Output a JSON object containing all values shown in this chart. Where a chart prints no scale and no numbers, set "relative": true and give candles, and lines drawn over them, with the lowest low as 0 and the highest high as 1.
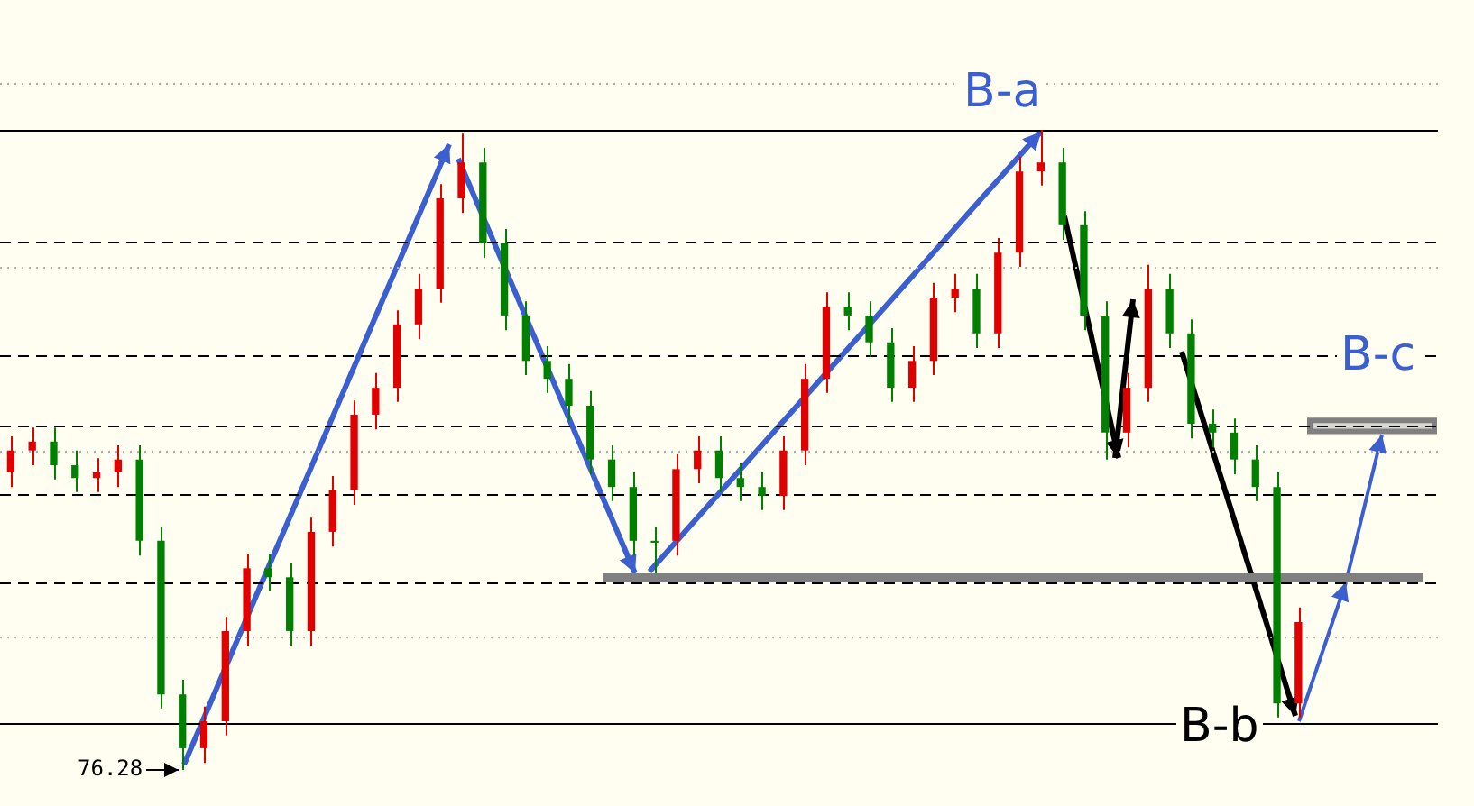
{
  "chart_data": {
    "type": "candlestick",
    "relative": true,
    "categories": [
      null,
      null,
      null,
      null,
      null,
      null,
      null,
      null,
      null,
      null,
      null,
      null,
      null,
      null,
      null,
      null,
      null,
      null,
      null,
      null,
      null,
      null,
      null,
      null,
      null,
      null,
      null,
      null,
      null,
      null,
      null,
      null,
      null,
      null,
      null,
      null,
      null,
      null,
      null,
      null,
      null,
      null,
      null,
      null,
      null,
      null,
      null,
      null,
      null,
      null,
      null,
      null,
      null,
      null,
      null,
      null,
      null,
      null,
      null,
      null,
      null,
      null,
      null,
      null,
      null,
      null,
      null
    ],
    "ohlc": [
      [
        0.465,
        0.521,
        0.442,
        0.499
      ],
      [
        0.499,
        0.535,
        0.476,
        0.513
      ],
      [
        0.513,
        0.535,
        0.454,
        0.476
      ],
      [
        0.476,
        0.499,
        0.434,
        0.456
      ],
      [
        0.456,
        0.487,
        0.434,
        0.465
      ],
      [
        0.465,
        0.507,
        0.442,
        0.485
      ],
      [
        0.485,
        0.507,
        0.335,
        0.358
      ],
      [
        0.358,
        0.38,
        0.096,
        0.118
      ],
      [
        0.118,
        0.141,
        0,
        0.034
      ],
      [
        0.034,
        0.099,
        0.011,
        0.076
      ],
      [
        0.076,
        0.239,
        0.054,
        0.217
      ],
      [
        0.217,
        0.338,
        0.194,
        0.315
      ],
      [
        0.315,
        0.338,
        0.279,
        0.301
      ],
      [
        0.301,
        0.324,
        0.194,
        0.217
      ],
      [
        0.217,
        0.394,
        0.194,
        0.372
      ],
      [
        0.372,
        0.459,
        0.349,
        0.437
      ],
      [
        0.437,
        0.577,
        0.414,
        0.555
      ],
      [
        0.555,
        0.62,
        0.532,
        0.597
      ],
      [
        0.597,
        0.718,
        0.575,
        0.696
      ],
      [
        0.696,
        0.775,
        0.673,
        0.752
      ],
      [
        0.752,
        0.915,
        0.73,
        0.893
      ],
      [
        0.893,
        0.994,
        0.87,
        0.949
      ],
      [
        0.949,
        0.972,
        0.8,
        0.823
      ],
      [
        0.823,
        0.845,
        0.687,
        0.71
      ],
      [
        0.71,
        0.732,
        0.617,
        0.639
      ],
      [
        0.639,
        0.662,
        0.589,
        0.611
      ],
      [
        0.611,
        0.634,
        0.546,
        0.569
      ],
      [
        0.569,
        0.592,
        0.462,
        0.485
      ],
      [
        0.485,
        0.507,
        0.42,
        0.442
      ],
      [
        0.442,
        0.465,
        0.335,
        0.358
      ],
      [
        0.358,
        0.38,
        0.307,
        0.355
      ],
      [
        0.358,
        0.493,
        0.335,
        0.47
      ],
      [
        0.47,
        0.521,
        0.448,
        0.499
      ],
      [
        0.499,
        0.521,
        0.434,
        0.456
      ],
      [
        0.456,
        0.479,
        0.42,
        0.442
      ],
      [
        0.442,
        0.465,
        0.406,
        0.428
      ],
      [
        0.428,
        0.521,
        0.406,
        0.499
      ],
      [
        0.499,
        0.634,
        0.476,
        0.611
      ],
      [
        0.611,
        0.746,
        0.589,
        0.724
      ],
      [
        0.724,
        0.746,
        0.687,
        0.71
      ],
      [
        0.71,
        0.732,
        0.645,
        0.668
      ],
      [
        0.668,
        0.69,
        0.575,
        0.597
      ],
      [
        0.597,
        0.662,
        0.575,
        0.639
      ],
      [
        0.639,
        0.761,
        0.617,
        0.738
      ],
      [
        0.738,
        0.775,
        0.715,
        0.752
      ],
      [
        0.752,
        0.775,
        0.659,
        0.682
      ],
      [
        0.682,
        0.831,
        0.659,
        0.808
      ],
      [
        0.808,
        0.958,
        0.786,
        0.935
      ],
      [
        0.935,
        1,
        0.913,
        0.949
      ],
      [
        0.949,
        0.972,
        0.828,
        0.851
      ],
      [
        0.851,
        0.873,
        0.687,
        0.71
      ],
      [
        0.71,
        0.732,
        0.485,
        0.527
      ],
      [
        0.527,
        0.62,
        0.504,
        0.597
      ],
      [
        0.597,
        0.789,
        0.575,
        0.752
      ],
      [
        0.752,
        0.775,
        0.659,
        0.682
      ],
      [
        0.682,
        0.704,
        0.518,
        0.541
      ],
      [
        0.541,
        0.563,
        0.504,
        0.527
      ],
      [
        0.527,
        0.549,
        0.462,
        0.485
      ],
      [
        0.485,
        0.507,
        0.42,
        0.442
      ],
      [
        0.442,
        0.465,
        0.082,
        0.104
      ],
      [
        0.104,
        0.254,
        0.082,
        0.231
      ],
      null,
      null,
      null,
      null,
      null,
      null
    ],
    "colors": [
      "#e00000",
      "#e00000",
      "#008000",
      "#008000",
      "#e00000",
      "#e00000",
      "#008000",
      "#008000",
      "#008000",
      "#e00000",
      "#e00000",
      "#e00000",
      "#008000",
      "#008000",
      "#e00000",
      "#e00000",
      "#e00000",
      "#e00000",
      "#e00000",
      "#e00000",
      "#e00000",
      "#e00000",
      "#008000",
      "#008000",
      "#008000",
      "#008000",
      "#008000",
      "#008000",
      "#008000",
      "#008000",
      "#008000",
      "#e00000",
      "#e00000",
      "#008000",
      "#008000",
      "#008000",
      "#e00000",
      "#e00000",
      "#e00000",
      "#008000",
      "#008000",
      "#008000",
      "#e00000",
      "#e00000",
      "#e00000",
      "#008000",
      "#e00000",
      "#e00000",
      "#e00000",
      "#008000",
      "#008000",
      "#008000",
      "#e00000",
      "#e00000",
      "#008000",
      "#008000",
      "#008000",
      "#008000",
      "#008000",
      "#008000",
      "#e00000",
      null,
      null,
      null,
      null,
      null,
      null
    ],
    "ref_lines": [
      {
        "axis": "y",
        "value": 1.0,
        "color": "#000000",
        "line_style": "solid"
      },
      {
        "axis": "y",
        "value": 0.073,
        "color": "#000000",
        "line_style": "solid"
      },
      {
        "axis": "y",
        "value": 0.825,
        "color": "#000000",
        "line_style": "dashed"
      },
      {
        "axis": "y",
        "value": 0.648,
        "color": "#000000",
        "line_style": "dashed"
      },
      {
        "axis": "y",
        "value": 0.538,
        "color": "#000000",
        "line_style": "dashed"
      },
      {
        "axis": "y",
        "value": 0.431,
        "color": "#000000",
        "line_style": "dashed"
      },
      {
        "axis": "y",
        "value": 0.293,
        "color": "#000000",
        "line_style": "dashed"
      },
      {
        "axis": "y",
        "value": 1.073,
        "color": "#b0b0b0",
        "line_style": "dotted"
      },
      {
        "axis": "y",
        "value": 0.786,
        "color": "#b0b0b0",
        "line_style": "dotted"
      },
      {
        "axis": "y",
        "value": 0.499,
        "color": "#b0b0b0",
        "line_style": "dotted"
      },
      {
        "axis": "y",
        "value": 0.208,
        "color": "#b0b0b0",
        "line_style": "dotted"
      }
    ],
    "bands": [
      {
        "axis": "y",
        "from": 0.293,
        "to": 0.307,
        "color": "#808080"
      },
      {
        "axis": "y",
        "from": 0.529,
        "to": 0.546,
        "color": "#808080"
      }
    ],
    "annotations": [
      "B-a",
      "B-b",
      "B-c",
      "76.28"
    ]
  }
}
